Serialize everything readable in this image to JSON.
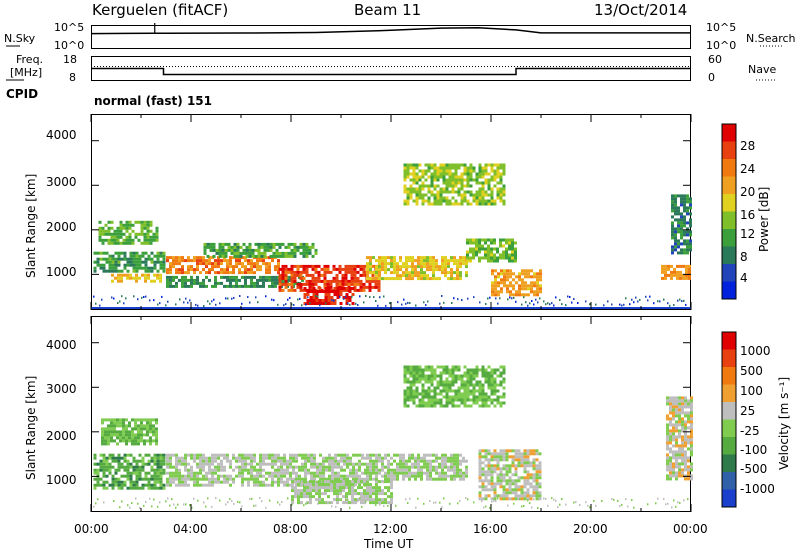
{
  "header": {
    "station": "Kerguelen (fitACF)",
    "beam": "Beam 11",
    "date": "13/Oct/2014"
  },
  "noise_panel": {
    "left_label": "N.Sky",
    "right_label": "N.Search",
    "tick_top": "10^5",
    "tick_bottom": "10^0",
    "tick_top_right": "10^5",
    "tick_bottom_right": "10^0"
  },
  "freq_panel": {
    "left_label_1": "Freq.",
    "left_label_2": "[MHz]",
    "right_label": "Nave",
    "freq_ticks": [
      "18",
      "8"
    ],
    "nave_ticks": [
      "60",
      "0"
    ]
  },
  "cpid_panel": {
    "label": "CPID",
    "value": "normal (fast) 151"
  },
  "power_panel": {
    "ylabel": "Slant Range [km]",
    "yticks": [
      "4000",
      "3000",
      "2000",
      "1000"
    ],
    "colorbar_label": "Power [dB]",
    "colorbar_ticks": [
      "28",
      "24",
      "20",
      "16",
      "12",
      "8",
      "4"
    ],
    "colors": [
      "#0022dd",
      "#2244bb",
      "#2a7a5a",
      "#3b9f3b",
      "#7fbf2a",
      "#e0d020",
      "#f0a020",
      "#f07a10",
      "#e84010",
      "#e00000"
    ]
  },
  "velocity_panel": {
    "ylabel": "Slant Range [km]",
    "yticks": [
      "4000",
      "3000",
      "2000",
      "1000"
    ],
    "colorbar_label": "Velocity [m s⁻¹]",
    "colorbar_ticks": [
      "1000",
      "500",
      "100",
      "25",
      "-25",
      "-100",
      "-500",
      "-1000"
    ],
    "colors": [
      "#1a3fcc",
      "#2f60a8",
      "#2f7a4a",
      "#55aa40",
      "#80cc50",
      "#bebebe",
      "#f0a030",
      "#f07a10",
      "#e84010",
      "#e00000"
    ]
  },
  "xaxis": {
    "label": "Time UT",
    "ticks": [
      "00:00",
      "04:00",
      "08:00",
      "12:00",
      "16:00",
      "20:00",
      "00:00"
    ]
  },
  "chart_data": [
    {
      "type": "line",
      "name": "noise",
      "x": [
        0,
        2.5,
        3,
        6,
        9,
        12,
        14,
        15.5,
        17,
        18,
        24
      ],
      "sky": [
        4.2,
        4.3,
        4.3,
        4.35,
        4.5,
        5.1,
        5.7,
        5.8,
        5.2,
        4.4,
        4.4
      ],
      "xlim": [
        0,
        24
      ]
    },
    {
      "type": "line",
      "name": "frequency",
      "x": [
        0,
        2.9,
        2.9,
        17.0,
        17.0,
        24
      ],
      "freq": [
        13,
        13,
        10.6,
        10.6,
        13,
        13
      ],
      "nave_x": [
        0,
        24
      ],
      "nave": [
        30,
        30
      ],
      "freq_ylim": [
        8,
        18
      ],
      "nave_ylim": [
        0,
        60
      ]
    },
    {
      "type": "heatmap",
      "name": "power",
      "xlim": [
        0,
        24
      ],
      "ylim": [
        200,
        4600
      ],
      "clim": [
        0,
        30
      ],
      "bands": [
        {
          "x0": 0.1,
          "x1": 2.9,
          "r0": 1050,
          "r1": 1500,
          "v": 10
        },
        {
          "x0": 0.3,
          "x1": 2.6,
          "r0": 1700,
          "r1": 2200,
          "v": 12
        },
        {
          "x0": 0.8,
          "x1": 2.8,
          "r0": 800,
          "r1": 1000,
          "v": 18
        },
        {
          "x0": 3.0,
          "x1": 7.5,
          "r0": 1000,
          "r1": 1400,
          "v": 22
        },
        {
          "x0": 3.0,
          "x1": 8.5,
          "r0": 700,
          "r1": 950,
          "v": 9
        },
        {
          "x0": 4.5,
          "x1": 9.0,
          "r0": 1400,
          "r1": 1700,
          "v": 11
        },
        {
          "x0": 7.5,
          "x1": 11.5,
          "r0": 650,
          "r1": 1200,
          "v": 26
        },
        {
          "x0": 8.5,
          "x1": 10.5,
          "r0": 300,
          "r1": 700,
          "v": 28
        },
        {
          "x0": 11.0,
          "x1": 15.0,
          "r0": 900,
          "r1": 1400,
          "v": 17
        },
        {
          "x0": 15.0,
          "x1": 17.0,
          "r0": 1300,
          "r1": 1800,
          "v": 13
        },
        {
          "x0": 12.5,
          "x1": 16.5,
          "r0": 2600,
          "r1": 3500,
          "v": 14
        },
        {
          "x0": 16.0,
          "x1": 18.0,
          "r0": 500,
          "r1": 1100,
          "v": 20
        },
        {
          "x0": 22.8,
          "x1": 24.0,
          "r0": 900,
          "r1": 1200,
          "v": 21
        },
        {
          "x0": 23.2,
          "x1": 24.0,
          "r0": 1500,
          "r1": 2800,
          "v": 8
        }
      ]
    },
    {
      "type": "heatmap",
      "name": "velocity",
      "xlim": [
        0,
        24
      ],
      "ylim": [
        200,
        4600
      ],
      "clim": [
        -1000,
        1000
      ],
      "bands": [
        {
          "x0": 0.1,
          "x1": 2.9,
          "r0": 700,
          "r1": 1500,
          "v": -300
        },
        {
          "x0": 0.4,
          "x1": 2.6,
          "r0": 1700,
          "r1": 2300,
          "v": -200
        },
        {
          "x0": 3.0,
          "x1": 11.0,
          "r0": 800,
          "r1": 1500,
          "v": 0
        },
        {
          "x0": 8.0,
          "x1": 12.0,
          "r0": 400,
          "r1": 900,
          "v": 0
        },
        {
          "x0": 11.0,
          "x1": 15.0,
          "r0": 900,
          "r1": 1500,
          "v": 0
        },
        {
          "x0": 12.5,
          "x1": 16.5,
          "r0": 2600,
          "r1": 3500,
          "v": -200
        },
        {
          "x0": 15.5,
          "x1": 18.0,
          "r0": 500,
          "r1": 1600,
          "v": 80
        },
        {
          "x0": 23.0,
          "x1": 24.0,
          "r0": 900,
          "r1": 2800,
          "v": 90
        }
      ]
    }
  ]
}
